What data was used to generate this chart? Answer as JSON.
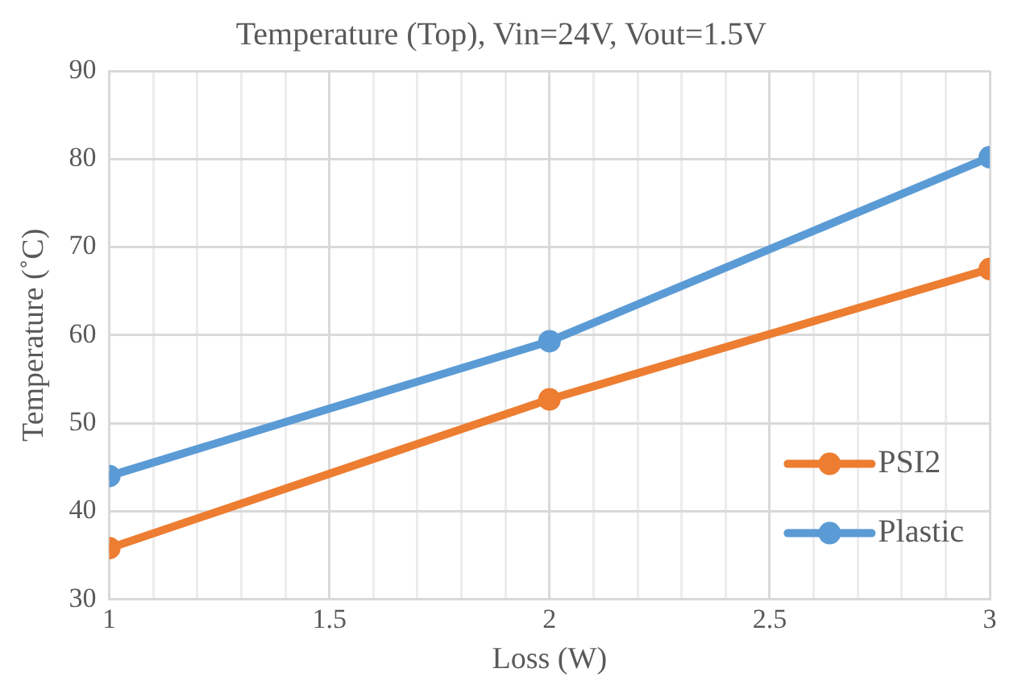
{
  "chart_data": {
    "type": "line",
    "title": "Temperature (Top), Vin=24V, Vout=1.5V",
    "xlabel": "Loss (W)",
    "ylabel": "Temperature (˚C)",
    "x": [
      1,
      2,
      3
    ],
    "series": [
      {
        "name": "PSI2",
        "color": "#ed7d31",
        "values": [
          35.8,
          52.7,
          67.5
        ]
      },
      {
        "name": "Plastic",
        "color": "#5b9bd5",
        "values": [
          44.0,
          59.3,
          80.2
        ]
      }
    ],
    "xlim": [
      1,
      3
    ],
    "xticks": [
      1,
      {
        "value": 1.1,
        "label": null
      },
      {
        "value": 1.2,
        "label": null
      },
      {
        "value": 1.3,
        "label": null
      },
      {
        "value": 1.4,
        "label": null
      },
      1.5,
      {
        "value": 1.6,
        "label": null
      },
      {
        "value": 1.7,
        "label": null
      },
      {
        "value": 1.8,
        "label": null
      },
      {
        "value": 1.9,
        "label": null
      },
      2,
      {
        "value": 2.1,
        "label": null
      },
      {
        "value": 2.2,
        "label": null
      },
      {
        "value": 2.3,
        "label": null
      },
      {
        "value": 2.4,
        "label": null
      },
      2.5,
      {
        "value": 2.6,
        "label": null
      },
      {
        "value": 2.7,
        "label": null
      },
      {
        "value": 2.8,
        "label": null
      },
      {
        "value": 2.9,
        "label": null
      },
      3
    ],
    "ylim": [
      30,
      90
    ],
    "yticks": [
      30,
      40,
      50,
      60,
      70,
      80,
      90
    ],
    "grid": true,
    "legend": "bottom right",
    "marker": "circle",
    "line_style": "solid"
  }
}
